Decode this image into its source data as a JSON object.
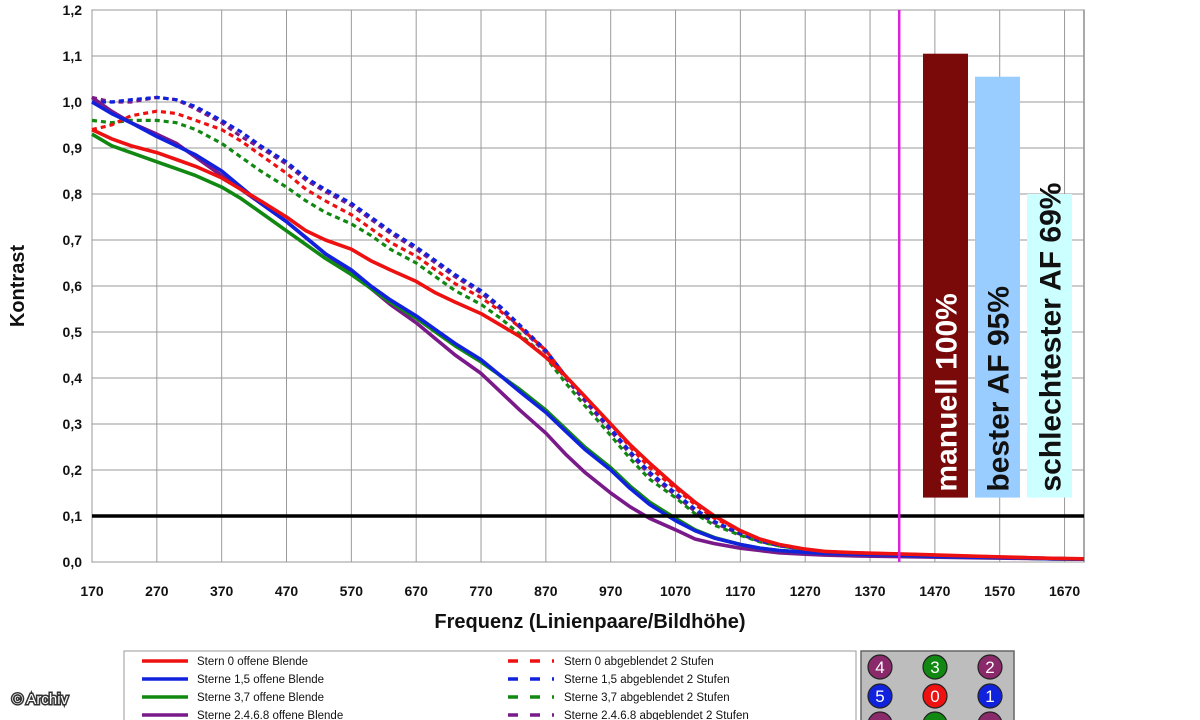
{
  "chart_data": {
    "type": "line",
    "xlabel": "Frequenz (Linienpaare/Bildhöhe)",
    "ylabel": "Kontrast",
    "xlim": [
      170,
      1700
    ],
    "ylim": [
      0,
      1.2
    ],
    "x_ticks": [
      "170",
      "270",
      "370",
      "470",
      "570",
      "670",
      "770",
      "870",
      "970",
      "1070",
      "1170",
      "1270",
      "1370",
      "1470",
      "1570",
      "1670"
    ],
    "y_ticks": [
      "0,0",
      "0,1",
      "0,2",
      "0,3",
      "0,4",
      "0,5",
      "0,6",
      "0,7",
      "0,8",
      "0,9",
      "1,0",
      "1,1",
      "1,2"
    ],
    "grid": true,
    "reference_line": {
      "y": 0.1,
      "color": "#000000"
    },
    "marker_line": {
      "x": 1415,
      "color": "#dd22dd"
    },
    "x": [
      170,
      200,
      230,
      270,
      300,
      330,
      370,
      400,
      430,
      470,
      500,
      530,
      570,
      600,
      630,
      670,
      700,
      730,
      770,
      800,
      830,
      870,
      900,
      930,
      970,
      1000,
      1030,
      1070,
      1100,
      1130,
      1170,
      1200,
      1230,
      1270,
      1300,
      1350,
      1400,
      1450,
      1500,
      1550,
      1600,
      1650,
      1700
    ],
    "series": [
      {
        "name": "Stern 0 offene Blende",
        "color": "#ee1111",
        "dash": false,
        "values": [
          0.94,
          0.92,
          0.905,
          0.89,
          0.875,
          0.86,
          0.835,
          0.81,
          0.785,
          0.75,
          0.72,
          0.7,
          0.68,
          0.655,
          0.635,
          0.61,
          0.585,
          0.565,
          0.54,
          0.515,
          0.49,
          0.445,
          0.405,
          0.36,
          0.3,
          0.255,
          0.215,
          0.165,
          0.13,
          0.1,
          0.068,
          0.05,
          0.038,
          0.028,
          0.023,
          0.02,
          0.018,
          0.016,
          0.014,
          0.012,
          0.01,
          0.008,
          0.007
        ]
      },
      {
        "name": "Sterne 1,5 offene Blende",
        "color": "#1122dd",
        "dash": false,
        "values": [
          1.0,
          0.975,
          0.955,
          0.925,
          0.905,
          0.885,
          0.85,
          0.815,
          0.78,
          0.74,
          0.705,
          0.67,
          0.635,
          0.6,
          0.57,
          0.535,
          0.505,
          0.475,
          0.44,
          0.405,
          0.37,
          0.325,
          0.285,
          0.245,
          0.2,
          0.16,
          0.125,
          0.09,
          0.068,
          0.052,
          0.038,
          0.03,
          0.025,
          0.021,
          0.019,
          0.017,
          0.015,
          0.013,
          0.011,
          0.01,
          0.009,
          0.007,
          0.006
        ]
      },
      {
        "name": "Sterne 3,7 offene Blende",
        "color": "#118811",
        "dash": false,
        "values": [
          0.93,
          0.905,
          0.89,
          0.87,
          0.855,
          0.84,
          0.815,
          0.79,
          0.76,
          0.72,
          0.69,
          0.66,
          0.625,
          0.595,
          0.565,
          0.53,
          0.5,
          0.47,
          0.435,
          0.405,
          0.375,
          0.33,
          0.29,
          0.25,
          0.205,
          0.165,
          0.13,
          0.095,
          0.07,
          0.053,
          0.038,
          0.03,
          0.025,
          0.021,
          0.019,
          0.017,
          0.015,
          0.013,
          0.011,
          0.01,
          0.009,
          0.007,
          0.006
        ]
      },
      {
        "name": "Sterne 2.4.6.8 offene Blende",
        "color": "#7a1a8a",
        "dash": false,
        "values": [
          1.01,
          0.98,
          0.955,
          0.93,
          0.91,
          0.88,
          0.84,
          0.81,
          0.78,
          0.74,
          0.705,
          0.67,
          0.63,
          0.595,
          0.56,
          0.52,
          0.485,
          0.45,
          0.41,
          0.37,
          0.33,
          0.28,
          0.235,
          0.195,
          0.15,
          0.12,
          0.095,
          0.07,
          0.05,
          0.04,
          0.03,
          0.025,
          0.02,
          0.017,
          0.015,
          0.013,
          0.012,
          0.011,
          0.01,
          0.009,
          0.008,
          0.007,
          0.006
        ]
      },
      {
        "name": "Stern 0 abgeblendet 2 Stufen",
        "color": "#ee1111",
        "dash": true,
        "values": [
          0.94,
          0.95,
          0.97,
          0.98,
          0.975,
          0.96,
          0.94,
          0.915,
          0.885,
          0.845,
          0.81,
          0.785,
          0.755,
          0.725,
          0.695,
          0.665,
          0.635,
          0.605,
          0.575,
          0.545,
          0.51,
          0.46,
          0.405,
          0.36,
          0.3,
          0.25,
          0.205,
          0.16,
          0.125,
          0.095,
          0.068,
          0.05,
          0.038,
          0.028,
          0.023,
          0.02,
          0.018,
          0.016,
          0.014,
          0.012,
          0.01,
          0.008,
          0.007
        ]
      },
      {
        "name": "Sterne 1,5 abgeblendet 2 Stufen",
        "color": "#1122dd",
        "dash": true,
        "values": [
          1.0,
          1.0,
          1.005,
          1.01,
          1.005,
          0.99,
          0.96,
          0.935,
          0.905,
          0.87,
          0.835,
          0.81,
          0.78,
          0.75,
          0.72,
          0.685,
          0.655,
          0.625,
          0.59,
          0.555,
          0.515,
          0.46,
          0.405,
          0.355,
          0.29,
          0.24,
          0.195,
          0.15,
          0.115,
          0.088,
          0.062,
          0.046,
          0.036,
          0.027,
          0.022,
          0.019,
          0.017,
          0.015,
          0.013,
          0.011,
          0.01,
          0.008,
          0.007
        ]
      },
      {
        "name": "Sterne 3,7 abgeblendet 2 Stufen",
        "color": "#118811",
        "dash": true,
        "values": [
          0.96,
          0.955,
          0.96,
          0.96,
          0.955,
          0.94,
          0.91,
          0.88,
          0.85,
          0.815,
          0.785,
          0.76,
          0.735,
          0.71,
          0.68,
          0.65,
          0.62,
          0.59,
          0.56,
          0.53,
          0.495,
          0.445,
          0.39,
          0.34,
          0.275,
          0.225,
          0.18,
          0.14,
          0.105,
          0.08,
          0.058,
          0.044,
          0.035,
          0.027,
          0.022,
          0.019,
          0.017,
          0.015,
          0.013,
          0.011,
          0.01,
          0.008,
          0.007
        ]
      },
      {
        "name": "Sterne 2.4.6.8 abgeblendet 2 Stufen",
        "color": "#7a1a8a",
        "dash": true,
        "values": [
          1.01,
          1.0,
          1.0,
          1.01,
          1.005,
          0.985,
          0.955,
          0.925,
          0.9,
          0.865,
          0.83,
          0.805,
          0.775,
          0.745,
          0.715,
          0.68,
          0.65,
          0.62,
          0.585,
          0.55,
          0.51,
          0.455,
          0.4,
          0.35,
          0.285,
          0.235,
          0.19,
          0.145,
          0.11,
          0.085,
          0.06,
          0.045,
          0.035,
          0.027,
          0.022,
          0.019,
          0.017,
          0.015,
          0.013,
          0.011,
          0.01,
          0.008,
          0.007
        ]
      }
    ],
    "bars": [
      {
        "label": "manuell 100%",
        "value": 1.105,
        "color": "#7a0a0a",
        "text_color": "#ffffff"
      },
      {
        "label": "bester AF 95%",
        "value": 1.055,
        "color": "#99ccff",
        "text_color": "#111111"
      },
      {
        "label": "schlechtester AF 69%",
        "value": 0.8,
        "color": "#ccffff",
        "text_color": "#111111"
      }
    ],
    "bars_base": 0.14
  },
  "legend": {
    "entries": [
      {
        "label": "Stern 0 offene Blende",
        "color": "#ee1111",
        "dash": false
      },
      {
        "label": "Sterne 1,5 offene Blende",
        "color": "#1122dd",
        "dash": false
      },
      {
        "label": "Sterne 3,7 offene Blende",
        "color": "#118811",
        "dash": false
      },
      {
        "label": "Sterne 2.4.6.8 offene Blende",
        "color": "#7a1a8a",
        "dash": false
      },
      {
        "label": "Stern 0 abgeblendet 2 Stufen",
        "color": "#ee1111",
        "dash": true
      },
      {
        "label": "Sterne 1,5 abgeblendet 2 Stufen",
        "color": "#1122dd",
        "dash": true
      },
      {
        "label": "Sterne 3,7 abgeblendet 2 Stufen",
        "color": "#118811",
        "dash": true
      },
      {
        "label": "Sterne 2.4.6.8 abgeblendet 2 Stufen",
        "color": "#7a1a8a",
        "dash": true
      }
    ]
  },
  "star_diagram": {
    "stars": [
      {
        "label": "4",
        "color": "#8a2a6a"
      },
      {
        "label": "3",
        "color": "#118811"
      },
      {
        "label": "2",
        "color": "#8a2a6a"
      },
      {
        "label": "5",
        "color": "#1122dd"
      },
      {
        "label": "0",
        "color": "#ee1111"
      },
      {
        "label": "1",
        "color": "#1122dd"
      },
      {
        "label": "",
        "color": "#8a2a6a"
      },
      {
        "label": "",
        "color": "#118811"
      },
      {
        "label": "",
        "color": "#8a2a6a"
      }
    ]
  },
  "copyright": "© Archiv"
}
